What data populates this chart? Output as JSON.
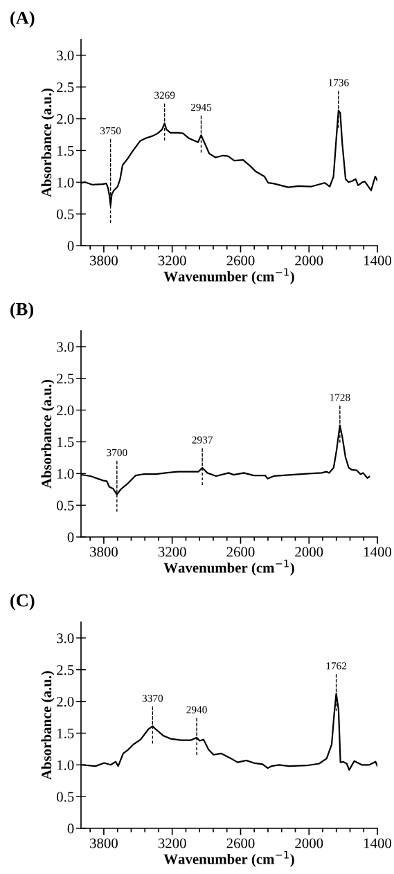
{
  "chart_data": [
    {
      "type": "line",
      "title": "(A)",
      "xlabel": "Wavenumber (cm$^{−1}$)",
      "ylabel": "Absorbance (a.u.)",
      "xlim": [
        4000,
        1400
      ],
      "ylim": [
        0,
        3.25
      ],
      "xticks": [
        {
          "value": 3920,
          "label": null
        },
        3800,
        {
          "value": 3680,
          "label": null
        },
        {
          "value": 3560,
          "label": null
        },
        {
          "value": 3440,
          "label": null
        },
        {
          "value": 3320,
          "label": null
        },
        3200,
        {
          "value": 3080,
          "label": null
        },
        {
          "value": 2960,
          "label": null
        },
        {
          "value": 2840,
          "label": null
        },
        {
          "value": 2720,
          "label": null
        },
        2600,
        {
          "value": 2480,
          "label": null
        },
        {
          "value": 2360,
          "label": null
        },
        {
          "value": 2240,
          "label": null
        },
        {
          "value": 2120,
          "label": null
        },
        2000,
        {
          "value": 1880,
          "label": null
        },
        {
          "value": 1760,
          "label": null
        },
        {
          "value": 1640,
          "label": null
        },
        {
          "value": 1520,
          "label": null
        },
        1400
      ],
      "yticks": [
        0,
        0.5,
        {
          "value": 1,
          "label": "1.0"
        },
        1.5,
        {
          "value": 2,
          "label": "2.0"
        },
        2.5,
        {
          "value": 3,
          "label": "3.0"
        }
      ],
      "grid": false,
      "legend": false,
      "line_style": "solid",
      "series": [
        {
          "color": "#000000",
          "x": [
            3996,
            3965,
            3899,
            3811,
            3778,
            3763,
            3749,
            3741,
            3730,
            3712,
            3679,
            3657,
            3635,
            3591,
            3547,
            3514,
            3481,
            3437,
            3371,
            3327,
            3289,
            3267,
            3250,
            3216,
            3150,
            3106,
            3051,
            2974,
            2946,
            2919,
            2875,
            2820,
            2754,
            2710,
            2655,
            2578,
            2512,
            2468,
            2391,
            2358,
            2314,
            2182,
            2094,
            1984,
            1862,
            1818,
            1785,
            1757,
            1741,
            1726,
            1708,
            1679,
            1653,
            1620,
            1591,
            1569,
            1532,
            1510,
            1455,
            1419,
            1402
          ],
          "values": [
            0.99,
            1.0,
            0.96,
            0.97,
            0.98,
            0.91,
            0.77,
            0.63,
            0.81,
            0.87,
            0.93,
            1.05,
            1.27,
            1.37,
            1.49,
            1.57,
            1.65,
            1.69,
            1.73,
            1.77,
            1.83,
            1.93,
            1.83,
            1.78,
            1.78,
            1.77,
            1.69,
            1.63,
            1.74,
            1.63,
            1.45,
            1.39,
            1.42,
            1.41,
            1.34,
            1.35,
            1.25,
            1.17,
            1.09,
            0.99,
            0.98,
            0.92,
            0.94,
            0.93,
            0.99,
            0.93,
            1.09,
            1.77,
            2.13,
            2.09,
            1.61,
            1.05,
            1.0,
            1.02,
            1.05,
            0.95,
            1.0,
            1.01,
            0.87,
            1.09,
            1.03
          ]
        }
      ],
      "annotations": [
        {
          "text": "3750",
          "x": 3741,
          "y": 0.63
        },
        {
          "text": "3269",
          "x": 3267,
          "y": 1.93
        },
        {
          "text": "2945",
          "x": 2946,
          "y": 1.74
        },
        {
          "text": "1736",
          "x": 1741,
          "y": 2.13
        }
      ]
    },
    {
      "type": "line",
      "title": "(B)",
      "xlabel": "Wavenumber (cm$^{−1}$)",
      "ylabel": "Absorbance (a.u.)",
      "xlim": [
        4000,
        1400
      ],
      "ylim": [
        0,
        3.25
      ],
      "xticks": [
        {
          "value": 3920,
          "label": null
        },
        3800,
        {
          "value": 3680,
          "label": null
        },
        {
          "value": 3560,
          "label": null
        },
        {
          "value": 3440,
          "label": null
        },
        {
          "value": 3320,
          "label": null
        },
        3200,
        {
          "value": 3080,
          "label": null
        },
        {
          "value": 2960,
          "label": null
        },
        {
          "value": 2840,
          "label": null
        },
        {
          "value": 2720,
          "label": null
        },
        2600,
        {
          "value": 2480,
          "label": null
        },
        {
          "value": 2360,
          "label": null
        },
        {
          "value": 2240,
          "label": null
        },
        {
          "value": 2120,
          "label": null
        },
        2000,
        {
          "value": 1880,
          "label": null
        },
        {
          "value": 1760,
          "label": null
        },
        {
          "value": 1640,
          "label": null
        },
        {
          "value": 1520,
          "label": null
        },
        1400
      ],
      "yticks": [
        0,
        0.5,
        {
          "value": 1,
          "label": "1.0"
        },
        1.5,
        {
          "value": 2,
          "label": "2.0"
        },
        2.5,
        {
          "value": 3,
          "label": "3.0"
        }
      ],
      "grid": false,
      "legend": false,
      "line_style": "solid",
      "series": [
        {
          "color": "#000000",
          "x": [
            3992,
            3917,
            3807,
            3774,
            3752,
            3718,
            3685,
            3652,
            3586,
            3520,
            3454,
            3344,
            3256,
            3145,
            2969,
            2936,
            2892,
            2815,
            2705,
            2661,
            2572,
            2484,
            2385,
            2363,
            2308,
            2154,
            2001,
            1890,
            1846,
            1824,
            1784,
            1757,
            1729,
            1708,
            1680,
            1651,
            1625,
            1581,
            1548,
            1526,
            1488,
            1471
          ],
          "values": [
            0.98,
            0.96,
            0.89,
            0.88,
            0.79,
            0.76,
            0.67,
            0.75,
            0.85,
            0.97,
            0.99,
            0.99,
            1.01,
            1.03,
            1.03,
            1.09,
            1.01,
            0.96,
            1.01,
            0.98,
            1.01,
            0.97,
            0.97,
            0.92,
            0.96,
            0.98,
            1.0,
            1.01,
            1.03,
            1.01,
            1.09,
            1.38,
            1.76,
            1.58,
            1.26,
            1.09,
            1.06,
            1.05,
            0.99,
            1.01,
            0.93,
            0.95
          ]
        }
      ],
      "annotations": [
        {
          "text": "3700",
          "x": 3685,
          "y": 0.67
        },
        {
          "text": "2937",
          "x": 2936,
          "y": 1.09
        },
        {
          "text": "1728",
          "x": 1729,
          "y": 1.76
        }
      ]
    },
    {
      "type": "line",
      "title": "(C)",
      "xlabel": "Wavenumber (cm$^{−1}$)",
      "ylabel": "Absorbance (a.u.)",
      "xlim": [
        4000,
        1400
      ],
      "ylim": [
        0,
        3.25
      ],
      "xticks": [
        {
          "value": 3920,
          "label": null
        },
        3800,
        {
          "value": 3680,
          "label": null
        },
        {
          "value": 3560,
          "label": null
        },
        {
          "value": 3440,
          "label": null
        },
        {
          "value": 3320,
          "label": null
        },
        3200,
        {
          "value": 3080,
          "label": null
        },
        {
          "value": 2960,
          "label": null
        },
        {
          "value": 2840,
          "label": null
        },
        {
          "value": 2720,
          "label": null
        },
        2600,
        {
          "value": 2480,
          "label": null
        },
        {
          "value": 2360,
          "label": null
        },
        {
          "value": 2240,
          "label": null
        },
        {
          "value": 2120,
          "label": null
        },
        2000,
        {
          "value": 1880,
          "label": null
        },
        {
          "value": 1760,
          "label": null
        },
        {
          "value": 1640,
          "label": null
        },
        {
          "value": 1520,
          "label": null
        },
        1400
      ],
      "yticks": [
        0,
        0.5,
        {
          "value": 1,
          "label": "1.0"
        },
        1.5,
        {
          "value": 2,
          "label": "2.0"
        },
        2.5,
        {
          "value": 3,
          "label": "3.0"
        }
      ],
      "grid": false,
      "legend": false,
      "line_style": "solid",
      "series": [
        {
          "color": "#000000",
          "x": [
            3994,
            3873,
            3796,
            3740,
            3696,
            3674,
            3630,
            3586,
            3542,
            3477,
            3410,
            3372,
            3344,
            3278,
            3212,
            3123,
            3035,
            2985,
            2958,
            2925,
            2881,
            2837,
            2771,
            2683,
            2627,
            2550,
            2484,
            2407,
            2363,
            2330,
            2264,
            2176,
            2021,
            1911,
            1845,
            1801,
            1779,
            1761,
            1741,
            1724,
            1702,
            1669,
            1647,
            1603,
            1537,
            1471,
            1416,
            1400
          ],
          "values": [
            1.0,
            0.98,
            1.03,
            1.0,
            1.05,
            0.98,
            1.18,
            1.24,
            1.32,
            1.4,
            1.56,
            1.61,
            1.56,
            1.46,
            1.41,
            1.39,
            1.39,
            1.43,
            1.38,
            1.4,
            1.24,
            1.16,
            1.18,
            1.1,
            1.04,
            1.07,
            1.03,
            1.01,
            0.95,
            0.98,
            1.0,
            0.98,
            0.99,
            1.02,
            1.1,
            1.32,
            1.8,
            2.12,
            1.88,
            1.04,
            1.05,
            1.02,
            0.92,
            1.06,
            1.0,
            1.0,
            1.05,
            0.98
          ]
        }
      ],
      "annotations": [
        {
          "text": "3370",
          "x": 3372,
          "y": 1.61
        },
        {
          "text": "2940",
          "x": 2985,
          "y": 1.43
        },
        {
          "text": "1762",
          "x": 1761,
          "y": 2.12
        }
      ]
    }
  ]
}
